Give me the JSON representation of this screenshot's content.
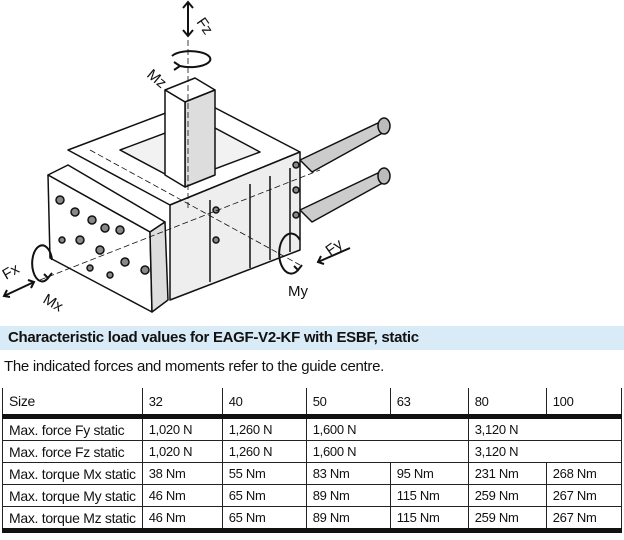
{
  "drawing": {
    "labels": {
      "fz": "Fz",
      "mz": "Mz",
      "fx": "Fx",
      "mx": "Mx",
      "fy": "Fy",
      "my": "My"
    }
  },
  "section": {
    "title": "Characteristic load values for EAGF-V2-KF with ESBF, static",
    "subtitle": "The indicated forces and moments refer to the guide centre.",
    "header_bg": "#d8ebf7"
  },
  "table": {
    "headers": [
      "Size",
      "32",
      "40",
      "50",
      "63",
      "80",
      "100"
    ],
    "rows": [
      {
        "label": "Max. force Fy static",
        "cells": [
          "1,020 N",
          "1,260 N",
          "1,600 N",
          "3,120 N"
        ]
      },
      {
        "label": "Max. force Fz static",
        "cells": [
          "1,020 N",
          "1,260 N",
          "1,600 N",
          "3,120 N"
        ]
      },
      {
        "label": "Max. torque Mx static",
        "cells": [
          "38 Nm",
          "55 Nm",
          "83 Nm",
          "95 Nm",
          "231 Nm",
          "268 Nm"
        ]
      },
      {
        "label": "Max. torque My static",
        "cells": [
          "46 Nm",
          "65 Nm",
          "89 Nm",
          "115 Nm",
          "259 Nm",
          "267 Nm"
        ]
      },
      {
        "label": "Max. torque Mz static",
        "cells": [
          "46 Nm",
          "65 Nm",
          "89 Nm",
          "115 Nm",
          "259 Nm",
          "267 Nm"
        ]
      }
    ]
  }
}
